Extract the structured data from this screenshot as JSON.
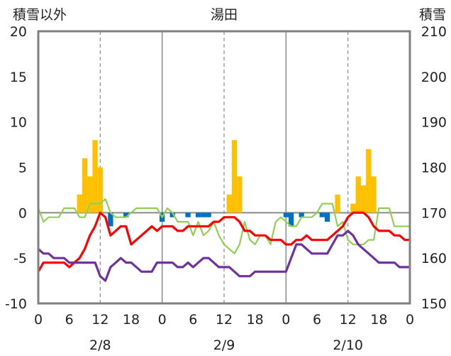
{
  "chart_data": {
    "type": "bar",
    "title": "湯田",
    "left_axis_label": "積雪以外",
    "right_axis_label": "積雪",
    "left_ylim": [
      -10,
      20
    ],
    "right_ylim": [
      150,
      210
    ],
    "left_ticks": [
      "20",
      "15",
      "10",
      "5",
      "0",
      "-5",
      "-10"
    ],
    "right_ticks": [
      "210",
      "200",
      "190",
      "180",
      "170",
      "160",
      "150"
    ],
    "x_ticks": [
      "0",
      "6",
      "12",
      "18",
      "0",
      "6",
      "12",
      "18",
      "0",
      "6",
      "12",
      "18",
      "0"
    ],
    "date_labels": [
      "2/8",
      "2/9",
      "2/10"
    ],
    "x_range_hours": [
      0,
      72
    ],
    "grid": "vertical lines at day boundaries, dashed at 12h",
    "colors": {
      "snowfall_bars": "#ffc000",
      "snow_decrease_bars": "#0070c0",
      "red_line": "#ff0000",
      "green_line": "#92d050",
      "purple_line": "#7030a0",
      "frame": "#808080"
    },
    "snowfall_bars": [
      {
        "hour": 8,
        "value": 2
      },
      {
        "hour": 9,
        "value": 6
      },
      {
        "hour": 10,
        "value": 4
      },
      {
        "hour": 11,
        "value": 8
      },
      {
        "hour": 12,
        "value": 5
      },
      {
        "hour": 37,
        "value": 2
      },
      {
        "hour": 38,
        "value": 8
      },
      {
        "hour": 39,
        "value": 4
      },
      {
        "hour": 58,
        "value": 2
      },
      {
        "hour": 61,
        "value": 1
      },
      {
        "hour": 62,
        "value": 4
      },
      {
        "hour": 63,
        "value": 3
      },
      {
        "hour": 64,
        "value": 7
      },
      {
        "hour": 65,
        "value": 4
      }
    ],
    "snow_decrease_bars": [
      {
        "hour": 14,
        "value": -1.5
      },
      {
        "hour": 17,
        "value": -0.5
      },
      {
        "hour": 24,
        "value": -1
      },
      {
        "hour": 26,
        "value": -0.5
      },
      {
        "hour": 29,
        "value": -0.5
      },
      {
        "hour": 31,
        "value": -0.5
      },
      {
        "hour": 32,
        "value": -0.5
      },
      {
        "hour": 33,
        "value": -0.5
      },
      {
        "hour": 48,
        "value": -0.5
      },
      {
        "hour": 49,
        "value": -1.5
      },
      {
        "hour": 51,
        "value": -0.5
      },
      {
        "hour": 55,
        "value": -0.5
      },
      {
        "hour": 56,
        "value": -1
      }
    ],
    "series": [
      {
        "axis": "left",
        "x": [
          0,
          1,
          2,
          3,
          4,
          5,
          6,
          7,
          8,
          9,
          10,
          11,
          12,
          13,
          14,
          15,
          16,
          17,
          18,
          19,
          20,
          21,
          22,
          23,
          24,
          25,
          26,
          27,
          28,
          29,
          30,
          31,
          32,
          33,
          34,
          35,
          36,
          37,
          38,
          39,
          40,
          41,
          42,
          43,
          44,
          45,
          46,
          47,
          48,
          49,
          50,
          51,
          52,
          53,
          54,
          55,
          56,
          57,
          58,
          59,
          60,
          61,
          62,
          63,
          64,
          65,
          66,
          67,
          68,
          69,
          70,
          71,
          72
        ],
        "y": [
          -6.5,
          -5.5,
          -5.5,
          -5.5,
          -5.5,
          -5.5,
          -6,
          -5.5,
          -5,
          -4,
          -2.5,
          -1.5,
          0,
          -0.5,
          -2.5,
          -2,
          -1.5,
          -1.5,
          -3.5,
          -3,
          -2.5,
          -2,
          -1.5,
          -2,
          -1.5,
          -1.5,
          -1.5,
          -2,
          -2,
          -1.5,
          -1.5,
          -1.5,
          -1.5,
          -1.5,
          -1,
          -1,
          -0.5,
          -0.5,
          -0.5,
          -1,
          -2,
          -2,
          -2.5,
          -2.5,
          -2.5,
          -3,
          -3,
          -3,
          -3.5,
          -3.5,
          -3,
          -3,
          -2.5,
          -3,
          -3,
          -3,
          -3,
          -2.5,
          -2,
          -1.5,
          -0.5,
          0,
          0,
          0,
          -0.5,
          -1.5,
          -2,
          -2,
          -2,
          -2.5,
          -2.5,
          -3,
          -3
        ]
      },
      {
        "axis": "left",
        "x": [
          0,
          1,
          2,
          3,
          4,
          5,
          6,
          7,
          8,
          9,
          10,
          11,
          12,
          13,
          14,
          15,
          16,
          17,
          18,
          19,
          20,
          21,
          22,
          23,
          24,
          25,
          26,
          27,
          28,
          29,
          30,
          31,
          32,
          33,
          34,
          35,
          36,
          37,
          38,
          39,
          40,
          41,
          42,
          43,
          44,
          45,
          46,
          47,
          48,
          49,
          50,
          51,
          52,
          53,
          54,
          55,
          56,
          57,
          58,
          59,
          60,
          61,
          62,
          63,
          64,
          65,
          66,
          67,
          68,
          69,
          70,
          71,
          72
        ],
        "y": [
          0.5,
          -1,
          -0.5,
          -0.5,
          -0.5,
          0.5,
          0.5,
          0.5,
          -0.5,
          -0.5,
          1,
          1,
          1,
          1.5,
          0,
          -0.5,
          -0.5,
          -0.5,
          0,
          0.5,
          0.5,
          0.5,
          0.5,
          0.5,
          -0.5,
          0.5,
          0,
          -1,
          -1,
          -1,
          -2.5,
          -1,
          -2.5,
          -2,
          -1,
          -2.5,
          -3.5,
          -4,
          -4.5,
          -3.5,
          -1,
          -3,
          -3.5,
          -2.5,
          -2.5,
          -3.5,
          -1,
          -0.5,
          -1,
          -1.5,
          -1.5,
          -0.5,
          -0.5,
          -0.5,
          0,
          1,
          1,
          1,
          -1.5,
          -1,
          -3,
          -3.5,
          -3.5,
          -3.5,
          -3,
          -3,
          0.5,
          0.5,
          0.5,
          -1.5,
          -1.5,
          -1.5,
          -1.5
        ]
      },
      {
        "axis": "left",
        "x": [
          0,
          1,
          2,
          3,
          4,
          5,
          6,
          7,
          8,
          9,
          10,
          11,
          12,
          13,
          14,
          15,
          16,
          17,
          18,
          19,
          20,
          21,
          22,
          23,
          24,
          25,
          26,
          27,
          28,
          29,
          30,
          31,
          32,
          33,
          34,
          35,
          36,
          37,
          38,
          39,
          40,
          41,
          42,
          43,
          44,
          45,
          46,
          47,
          48,
          49,
          50,
          51,
          52,
          53,
          54,
          55,
          56,
          57,
          58,
          59,
          60,
          61,
          62,
          63,
          64,
          65,
          66,
          67,
          68,
          69,
          70,
          71,
          72
        ],
        "y": [
          -4,
          -4.5,
          -4.5,
          -5,
          -5,
          -5,
          -5.5,
          -5.5,
          -5.5,
          -5.5,
          -5.5,
          -5.5,
          -7,
          -7.5,
          -6,
          -5.5,
          -5,
          -5.5,
          -5.5,
          -6,
          -6.5,
          -6.5,
          -6.5,
          -5.5,
          -5.5,
          -5.5,
          -5.5,
          -6,
          -6,
          -5.5,
          -6,
          -5.5,
          -5,
          -5,
          -5.5,
          -6,
          -6,
          -6,
          -6.5,
          -7,
          -7,
          -7,
          -6.5,
          -6.5,
          -6.5,
          -6.5,
          -6.5,
          -6.5,
          -6.5,
          -5,
          -3.5,
          -3.5,
          -4,
          -4.5,
          -4.5,
          -4.5,
          -4.5,
          -3.5,
          -2.5,
          -2.5,
          -2,
          -2.5,
          -3.5,
          -4,
          -4.5,
          -5,
          -5.5,
          -5.5,
          -5.5,
          -5.5,
          -6,
          -6,
          -6
        ]
      }
    ]
  }
}
